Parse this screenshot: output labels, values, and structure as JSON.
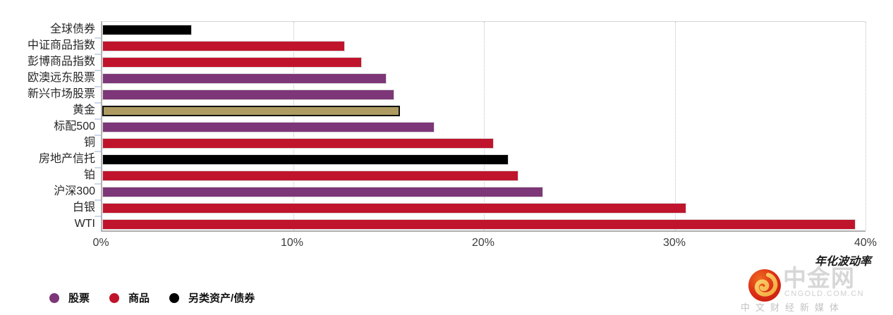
{
  "chart_data": {
    "type": "bar",
    "orientation": "horizontal",
    "title": "",
    "xlabel": "年化波动率",
    "unit": "%",
    "xlim": [
      0,
      40
    ],
    "xticks": [
      {
        "value": 0,
        "label": "0%"
      },
      {
        "value": 10,
        "label": "10%"
      },
      {
        "value": 20,
        "label": "20%"
      },
      {
        "value": 30,
        "label": "30%"
      },
      {
        "value": 40,
        "label": "40%"
      }
    ],
    "grid": "vertical-dotted",
    "legend_position": "bottom-left",
    "colors": {
      "equity": "#7D3678",
      "commodity": "#C0142C",
      "alternative": "#000000",
      "gold": "#AD9B62"
    },
    "bars": [
      {
        "label": "全球债券",
        "value": 4.7,
        "group": "alternative"
      },
      {
        "label": "中证商品指数",
        "value": 12.7,
        "group": "commodity"
      },
      {
        "label": "彭博商品指数",
        "value": 13.6,
        "group": "commodity"
      },
      {
        "label": "欧澳远东股票",
        "value": 14.9,
        "group": "equity"
      },
      {
        "label": "新兴市场股票",
        "value": 15.3,
        "group": "equity"
      },
      {
        "label": "黄金",
        "value": 15.6,
        "group": "gold"
      },
      {
        "label": "标配500",
        "value": 17.4,
        "group": "equity"
      },
      {
        "label": "铜",
        "value": 20.5,
        "group": "commodity"
      },
      {
        "label": "房地产信托",
        "value": 21.3,
        "group": "alternative"
      },
      {
        "label": "铂",
        "value": 21.8,
        "group": "commodity"
      },
      {
        "label": "沪深300",
        "value": 23.1,
        "group": "equity"
      },
      {
        "label": "白银",
        "value": 30.6,
        "group": "commodity"
      },
      {
        "label": "WTI",
        "value": 39.5,
        "group": "commodity"
      }
    ],
    "legend": [
      {
        "label": "股票",
        "color": "#7D3678"
      },
      {
        "label": "商品",
        "color": "#C0142C"
      },
      {
        "label": "另类资产/债券",
        "color": "#000000"
      }
    ]
  },
  "watermark": {
    "site_name": "中金网",
    "site_url": "CNGOLD.COM.CN",
    "tagline": "中文财经新媒体"
  }
}
